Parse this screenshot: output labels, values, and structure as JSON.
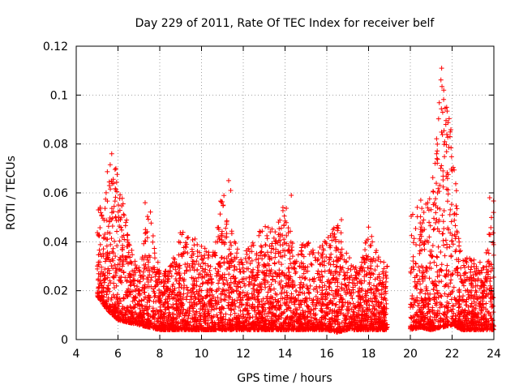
{
  "chart_data": {
    "type": "scatter",
    "title": "Day 229 of 2011, Rate Of TEC Index for receiver belf",
    "xlabel": "GPS time / hours",
    "ylabel": "ROTI / TECUs",
    "xlim": [
      4,
      24
    ],
    "ylim": [
      0,
      0.12
    ],
    "grid": true,
    "marker": "+",
    "series_color": "#ff0000",
    "x_ticks": [
      4,
      6,
      8,
      10,
      12,
      14,
      16,
      18,
      20,
      22,
      24
    ],
    "x_tick_labels": [
      "4",
      "6",
      "8",
      "10",
      "12",
      "14",
      "16",
      "18",
      "20",
      "22",
      "24"
    ],
    "y_ticks": [
      0,
      0.02,
      0.04,
      0.06,
      0.08,
      0.1,
      0.12
    ],
    "y_tick_labels": [
      "0",
      "0.02",
      "0.04",
      "0.06",
      "0.08",
      "0.1",
      "0.12"
    ],
    "envelope_hours": [
      5.0,
      5.5,
      6.0,
      6.5,
      7.0,
      7.5,
      8.0,
      8.5,
      9.0,
      9.5,
      10.0,
      10.5,
      11.0,
      11.5,
      12.0,
      12.5,
      13.0,
      13.5,
      14.0,
      14.5,
      15.0,
      15.5,
      16.0,
      16.5,
      17.0,
      17.5,
      18.0,
      18.5,
      18.9,
      20.0,
      20.5,
      21.0,
      21.5,
      22.0,
      22.5,
      23.0,
      23.5,
      24.0
    ],
    "envelope_low": [
      0.018,
      0.012,
      0.008,
      0.007,
      0.006,
      0.005,
      0.004,
      0.004,
      0.004,
      0.004,
      0.004,
      0.004,
      0.004,
      0.004,
      0.004,
      0.004,
      0.004,
      0.004,
      0.004,
      0.004,
      0.004,
      0.004,
      0.004,
      0.003,
      0.004,
      0.004,
      0.004,
      0.004,
      0.004,
      0.004,
      0.005,
      0.004,
      0.005,
      0.006,
      0.004,
      0.004,
      0.004,
      0.004
    ],
    "envelope_high": [
      0.05,
      0.076,
      0.068,
      0.045,
      0.03,
      0.056,
      0.028,
      0.03,
      0.045,
      0.042,
      0.04,
      0.034,
      0.064,
      0.042,
      0.035,
      0.042,
      0.047,
      0.046,
      0.058,
      0.034,
      0.043,
      0.036,
      0.043,
      0.049,
      0.036,
      0.028,
      0.046,
      0.034,
      0.032,
      0.052,
      0.057,
      0.06,
      0.11,
      0.083,
      0.033,
      0.034,
      0.031,
      0.058
    ],
    "peaks": [
      {
        "x": 5.7,
        "y": 0.076
      },
      {
        "x": 5.9,
        "y": 0.07
      },
      {
        "x": 7.3,
        "y": 0.056
      },
      {
        "x": 11.3,
        "y": 0.065
      },
      {
        "x": 11.4,
        "y": 0.061
      },
      {
        "x": 14.3,
        "y": 0.059
      },
      {
        "x": 16.7,
        "y": 0.049
      },
      {
        "x": 18.0,
        "y": 0.046
      },
      {
        "x": 20.5,
        "y": 0.057
      },
      {
        "x": 21.5,
        "y": 0.111
      },
      {
        "x": 21.6,
        "y": 0.102
      },
      {
        "x": 21.55,
        "y": 0.093
      },
      {
        "x": 21.7,
        "y": 0.088
      },
      {
        "x": 21.9,
        "y": 0.083
      },
      {
        "x": 22.0,
        "y": 0.069
      },
      {
        "x": 23.8,
        "y": 0.058
      }
    ],
    "data_gap_hours": [
      18.9,
      20.0
    ]
  }
}
